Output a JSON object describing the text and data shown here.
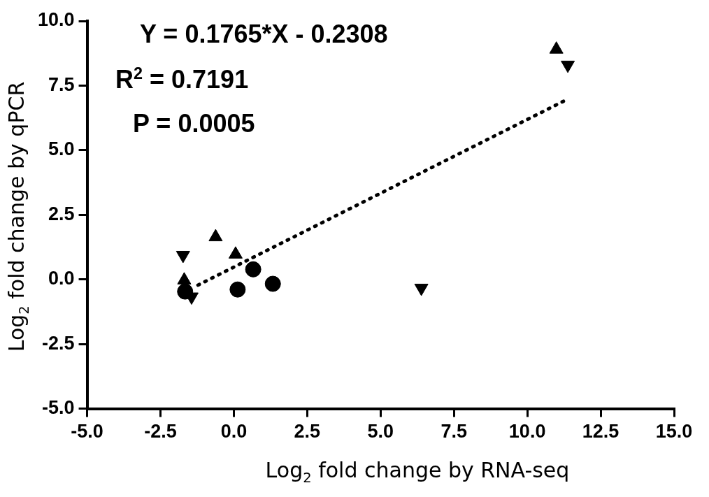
{
  "chart_data": {
    "type": "scatter",
    "xlabel": "Log$_{2}$ fold change by RNA-seq",
    "ylabel": "Log$_{2}$ fold change by qPCR",
    "annotations": [
      "Y = 0.1765*X - 0.2308",
      "R$^{2}$ = 0.7191",
      "P = 0.0005"
    ],
    "xlim": [
      -5,
      15
    ],
    "xticks": [
      {
        "value": -5,
        "label": "-5.0"
      },
      {
        "value": -2.5,
        "label": "-2.5"
      },
      {
        "value": 0,
        "label": "0.0"
      },
      {
        "value": 2.5,
        "label": "2.5"
      },
      {
        "value": 5,
        "label": "5.0"
      },
      {
        "value": 7.5,
        "label": "7.5"
      },
      {
        "value": 10,
        "label": "10.0"
      },
      {
        "value": 12.5,
        "label": "12.5"
      },
      {
        "value": 15,
        "label": "15.0"
      }
    ],
    "ylim": [
      -5,
      10
    ],
    "yticks": [
      {
        "value": -5,
        "label": "-5.0"
      },
      {
        "value": -2.5,
        "label": "-2.5"
      },
      {
        "value": 0,
        "label": "0.0"
      },
      {
        "value": 2.5,
        "label": "2.5"
      },
      {
        "value": 5,
        "label": "5.0"
      },
      {
        "value": 7.5,
        "label": "7.5"
      },
      {
        "value": 10,
        "label": "10.0"
      }
    ],
    "grid": false,
    "series": [
      {
        "marker": "circle",
        "color": "#000000",
        "x": [
          -1.66,
          0.13,
          0.66,
          1.33
        ],
        "values": [
          -0.47,
          -0.39,
          0.39,
          -0.17
        ]
      },
      {
        "marker": "triangle",
        "color": "#000000",
        "x": [
          -1.69,
          -0.62,
          0.06,
          10.99
        ],
        "values": [
          -0.03,
          1.64,
          0.97,
          8.9
        ]
      },
      {
        "marker": "triangle-down",
        "color": "#000000",
        "x": [
          -1.73,
          -1.44,
          6.39,
          11.38
        ],
        "values": [
          0.94,
          -0.67,
          -0.33,
          8.3
        ]
      },
      {
        "type": "line",
        "marker": "none",
        "line_style": "dotted",
        "color": "#000000",
        "x": [
          -1.22,
          11.28
        ],
        "values": [
          -0.22,
          6.92
        ]
      }
    ]
  }
}
